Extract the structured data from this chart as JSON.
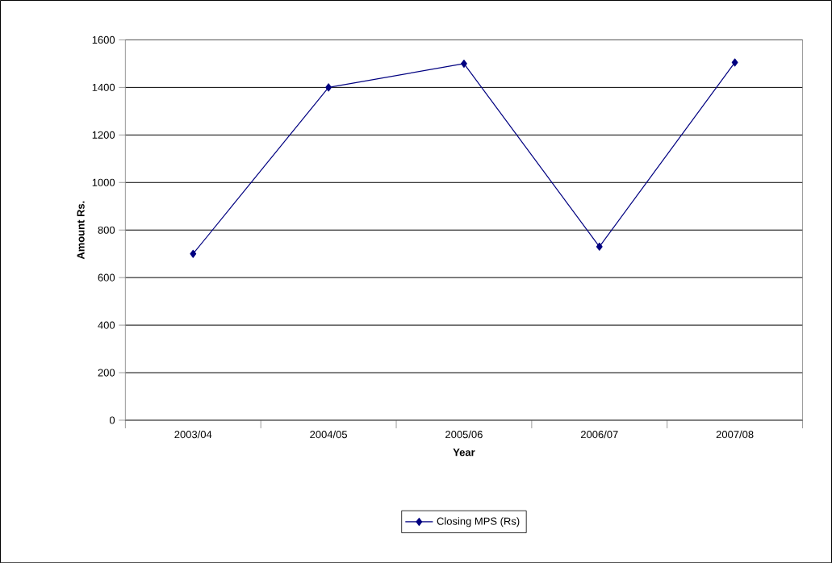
{
  "chart_data": {
    "type": "line",
    "xlabel": "Year",
    "ylabel": "Amount Rs.",
    "categories": [
      "2003/04",
      "2004/05",
      "2005/06",
      "2006/07",
      "2007/08"
    ],
    "series": [
      {
        "name": "Closing MPS (Rs)",
        "color": "#000080",
        "values": [
          700,
          1400,
          1500,
          730,
          1505
        ]
      }
    ],
    "ylim": [
      0,
      1600
    ],
    "yticks": [
      0,
      200,
      400,
      600,
      800,
      1000,
      1200,
      1400,
      1600
    ],
    "grid": "y",
    "legend": "bottom",
    "marker": "diamond",
    "line_style": "solid"
  }
}
